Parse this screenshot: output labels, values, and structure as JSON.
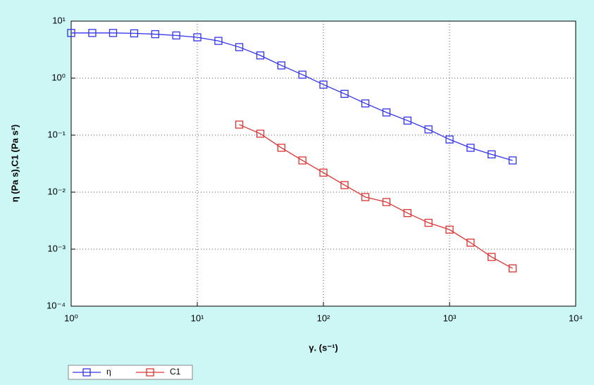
{
  "chart_data": {
    "type": "line",
    "x_label": "γ. (s⁻¹)",
    "y_label": "η (Pa s),C1 (Pa s²)",
    "log_x": true,
    "log_y": true,
    "grid": true,
    "legend": "bottom-left",
    "x": [
      1,
      1.47,
      2.15,
      3.16,
      4.64,
      6.81,
      10,
      14.7,
      21.5,
      31.6,
      46.4,
      68.1,
      100,
      147,
      215,
      316,
      464,
      681,
      1000,
      1468,
      2154,
      3162
    ],
    "series": [
      {
        "name": "η",
        "color": "#3333ee",
        "values": [
          6.2,
          6.2,
          6.2,
          6.1,
          5.9,
          5.6,
          5.2,
          4.5,
          3.5,
          2.5,
          1.67,
          1.15,
          0.77,
          0.53,
          0.36,
          0.25,
          0.18,
          0.126,
          0.084,
          0.06,
          0.046,
          0.036
        ]
      },
      {
        "name": "C1",
        "color": "#dd3333",
        "values": [
          null,
          null,
          null,
          null,
          null,
          null,
          null,
          null,
          0.153,
          0.106,
          0.06,
          0.036,
          0.022,
          0.0133,
          0.0082,
          0.0067,
          0.0043,
          0.0029,
          0.0022,
          0.0013,
          0.00073,
          0.00046
        ]
      }
    ],
    "xlim": [
      1,
      10000
    ],
    "xticks": [
      {
        "value": 1,
        "label": "10⁰"
      },
      {
        "value": 10,
        "label": "10¹"
      },
      {
        "value": 100,
        "label": "10²"
      },
      {
        "value": 1000,
        "label": "10³"
      },
      {
        "value": 10000,
        "label": "10⁴"
      }
    ],
    "ylim": [
      0.0001,
      10
    ],
    "yticks": [
      {
        "value": 0.0001,
        "label": "10⁻⁴"
      },
      {
        "value": 0.001,
        "label": "10⁻³"
      },
      {
        "value": 0.01,
        "label": "10⁻²"
      },
      {
        "value": 0.1,
        "label": "10⁻¹"
      },
      {
        "value": 1,
        "label": "10⁰"
      },
      {
        "value": 10,
        "label": "10¹"
      }
    ]
  }
}
